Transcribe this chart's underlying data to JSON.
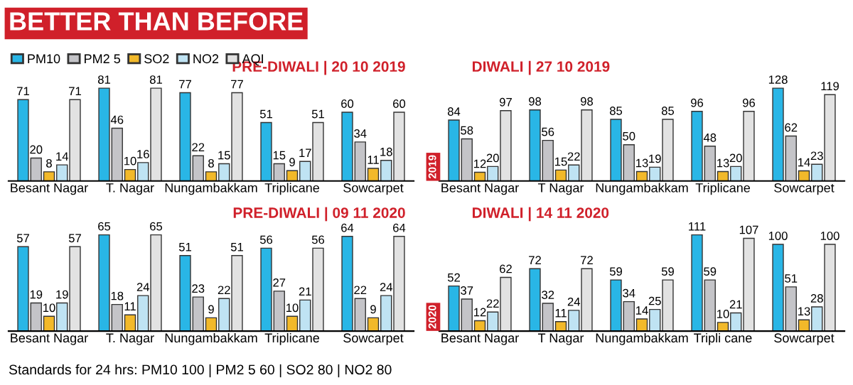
{
  "chart_data": [
    {
      "type": "bar",
      "title": "BETTER THAN BEFORE",
      "subtitle": "PRE-DIWALI | 20 10 2019",
      "categories": [
        "Besant Nagar",
        "T. Nagar",
        "Nungambakkam",
        "Triplicane",
        "Sowcarpet"
      ],
      "tick_labels": "x",
      "data_labels": true,
      "legend": "top left",
      "series": [
        {
          "name": "PM10",
          "color": "#29b6e6",
          "values": [
            71,
            81,
            77,
            51,
            60
          ]
        },
        {
          "name": "PM2 5",
          "color": "#c4c4c8",
          "values": [
            20,
            46,
            22,
            15,
            34
          ]
        },
        {
          "name": "SO2",
          "color": "#f2b92a",
          "values": [
            8,
            10,
            8,
            9,
            11
          ]
        },
        {
          "name": "NO2",
          "color": "#bfe3f3",
          "values": [
            14,
            16,
            15,
            17,
            18
          ]
        },
        {
          "name": "AQI",
          "color": "#e2e2e2",
          "values": [
            71,
            81,
            77,
            51,
            60
          ]
        }
      ]
    },
    {
      "type": "bar",
      "subtitle": "DIWALI | 27 10 2019",
      "annotations": [
        "2019"
      ],
      "categories": [
        "Besant Nagar",
        "T Nagar",
        "Nungambakkam",
        "Triplicane",
        "Sowcarpet"
      ],
      "tick_labels": "x",
      "data_labels": true,
      "series": [
        {
          "color": "#29b6e6",
          "values": [
            84,
            98,
            85,
            96,
            128
          ]
        },
        {
          "color": "#c4c4c8",
          "values": [
            58,
            56,
            50,
            48,
            62
          ]
        },
        {
          "color": "#f2b92a",
          "values": [
            12,
            15,
            13,
            13,
            14
          ]
        },
        {
          "color": "#bfe3f3",
          "values": [
            20,
            22,
            19,
            20,
            23
          ]
        },
        {
          "color": "#e2e2e2",
          "values": [
            97,
            98,
            85,
            96,
            119
          ]
        }
      ]
    },
    {
      "type": "bar",
      "subtitle": "PRE-DIWALI | 09 11 2020",
      "annotations": [
        "Standards for 24 hrs: PM10 100 | PM2 5 60 | SO2 80 | NO2 80"
      ],
      "categories": [
        "Besant Nagar",
        "T. Nagar",
        "Nungambakkam",
        "Triplicane",
        "Sowcarpet"
      ],
      "tick_labels": "x",
      "data_labels": true,
      "series": [
        {
          "color": "#29b6e6",
          "values": [
            57,
            65,
            51,
            56,
            64
          ]
        },
        {
          "color": "#c4c4c8",
          "values": [
            19,
            18,
            23,
            27,
            22
          ]
        },
        {
          "color": "#f2b92a",
          "values": [
            10,
            11,
            9,
            10,
            9
          ]
        },
        {
          "color": "#bfe3f3",
          "values": [
            19,
            24,
            22,
            21,
            24
          ]
        },
        {
          "color": "#e2e2e2",
          "values": [
            57,
            65,
            51,
            56,
            64
          ]
        }
      ]
    },
    {
      "type": "bar",
      "subtitle": "DIWALI | 14 11 2020",
      "annotations": [
        "2020"
      ],
      "categories": [
        "Besant Nagar",
        "T Nagar",
        "Nungambakkam",
        "Tripli cane",
        "Sowcarpet"
      ],
      "tick_labels": "x",
      "data_labels": true,
      "series": [
        {
          "color": "#29b6e6",
          "values": [
            52,
            72,
            59,
            111,
            100
          ]
        },
        {
          "color": "#c4c4c8",
          "values": [
            37,
            32,
            34,
            59,
            51
          ]
        },
        {
          "color": "#f2b92a",
          "values": [
            12,
            11,
            14,
            10,
            13
          ]
        },
        {
          "color": "#bfe3f3",
          "values": [
            22,
            24,
            25,
            21,
            28
          ]
        },
        {
          "color": "#e2e2e2",
          "values": [
            62,
            72,
            59,
            107,
            100
          ]
        }
      ]
    }
  ]
}
